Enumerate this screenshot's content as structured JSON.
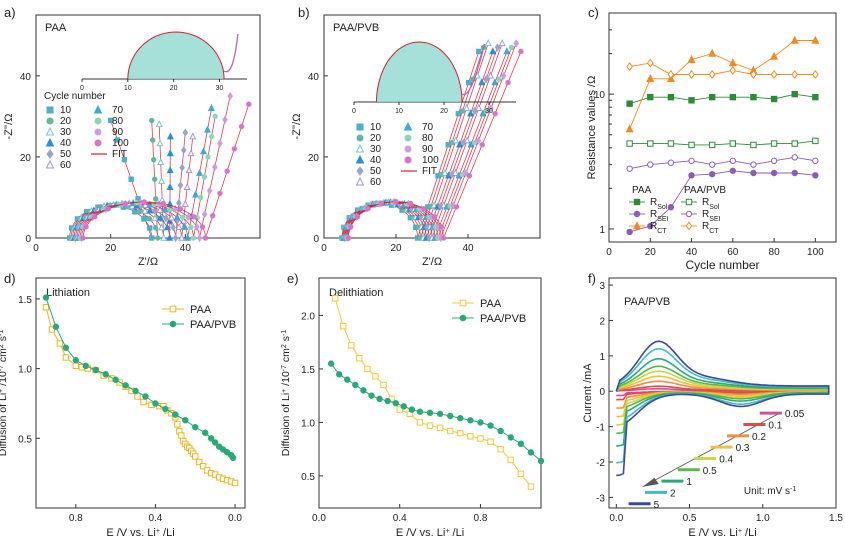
{
  "chart_data": [
    {
      "panel": "a)",
      "type": "scatter",
      "title": "PAA",
      "xlabel": "Z'/Ω",
      "ylabel": "-Z''/Ω",
      "xlim": [
        0,
        60
      ],
      "ylim": [
        0,
        55
      ],
      "xticks": [
        0,
        20,
        40
      ],
      "yticks": [
        0,
        20,
        40
      ],
      "legend_title": "Cycle number",
      "legend_col1": [
        "10",
        "20",
        "30",
        "40",
        "50",
        "60"
      ],
      "legend_col2": [
        "70",
        "80",
        "90",
        "100",
        "FIT"
      ],
      "inset_xticks": [
        0,
        10,
        20,
        30
      ],
      "series": [
        {
          "name": "10",
          "color": "#4bb0c8",
          "sr": 1.0,
          "tail": [
            [
              20,
              29
            ]
          ]
        },
        {
          "name": "20",
          "color": "#5fb8a0",
          "sr": 0.95,
          "tail": [
            [
              31,
              29
            ]
          ]
        },
        {
          "name": "30",
          "color": "#7ec0d8",
          "sr": 0.95,
          "tail": [
            [
              33,
              28
            ]
          ]
        },
        {
          "name": "40",
          "color": "#2f8fd0",
          "sr": 1.0,
          "tail": [
            [
              36,
              25
            ]
          ]
        },
        {
          "name": "50",
          "color": "#9aa6c8",
          "sr": 1.05,
          "tail": [
            [
              40,
              26
            ]
          ]
        },
        {
          "name": "60",
          "color": "#9b9bd6",
          "sr": 1.05,
          "tail": [
            [
              42,
              25
            ]
          ]
        },
        {
          "name": "70",
          "color": "#3fa8d8",
          "sr": 1.1,
          "tail": [
            [
              47,
              32
            ]
          ]
        },
        {
          "name": "80",
          "color": "#8fd6b8",
          "sr": 1.1,
          "tail": [
            [
              48,
              30
            ]
          ]
        },
        {
          "name": "90",
          "color": "#c9a0dc",
          "sr": 1.1,
          "tail": [
            [
              52,
              35
            ]
          ]
        },
        {
          "name": "100",
          "color": "#d873c8",
          "sr": 1.15,
          "tail": [
            [
              57,
              33
            ]
          ]
        }
      ]
    },
    {
      "panel": "b)",
      "type": "scatter",
      "title": "PAA/PVB",
      "xlabel": "Z'/Ω",
      "ylabel": "-Z''/Ω",
      "xlim": [
        0,
        60
      ],
      "ylim": [
        0,
        55
      ],
      "xticks": [
        0,
        20,
        40
      ],
      "yticks": [
        0,
        20,
        40
      ],
      "legend_title": "Cycle number",
      "legend_col1": [
        "10",
        "20",
        "30",
        "40",
        "50",
        "60"
      ],
      "legend_col2": [
        "70",
        "80",
        "90",
        "100",
        "FIT"
      ],
      "inset_xticks": [
        0,
        10,
        20,
        30
      ]
    },
    {
      "panel": "c)",
      "type": "line",
      "xlabel": "Cycle number",
      "ylabel": "Resistance values /Ω",
      "yscale": "log",
      "xlim": [
        0,
        110
      ],
      "ylim": [
        0.8,
        40
      ],
      "xticks": [
        0,
        20,
        40,
        60,
        80,
        100
      ],
      "yticks": [
        1,
        10
      ],
      "x": [
        10,
        20,
        30,
        40,
        50,
        60,
        70,
        80,
        90,
        100
      ],
      "legend_headers": [
        "PAA",
        "PAA/PVB"
      ],
      "legend_labels": [
        "RSol",
        "RSEI",
        "RCT"
      ],
      "series": [
        {
          "name": "RSol PAA",
          "color": "#2e8b3a",
          "marker": "square-filled",
          "values": [
            8.5,
            9.5,
            9.5,
            9.0,
            9.5,
            9.5,
            9.5,
            9.2,
            10,
            9.5
          ]
        },
        {
          "name": "RSEI PAA",
          "color": "#8a5db8",
          "marker": "circle-filled",
          "values": [
            0.95,
            1.05,
            1.45,
            2.5,
            2.55,
            2.7,
            2.6,
            2.6,
            2.6,
            2.5
          ]
        },
        {
          "name": "RCT PAA",
          "color": "#f08a24",
          "marker": "tri-filled",
          "values": [
            5.5,
            13,
            13,
            18,
            20,
            17,
            15,
            19,
            25,
            25
          ]
        },
        {
          "name": "RSol PAA/PVB",
          "color": "#2e8b3a",
          "marker": "square-open",
          "values": [
            4.3,
            4.3,
            4.3,
            4.2,
            4.2,
            4.3,
            4.2,
            4.3,
            4.3,
            4.5
          ]
        },
        {
          "name": "RSEI PAA/PVB",
          "color": "#8a5db8",
          "marker": "circle-open",
          "values": [
            2.8,
            3.0,
            3.1,
            3.2,
            3.0,
            3.2,
            3.0,
            3.2,
            3.4,
            3.2
          ]
        },
        {
          "name": "RCT PAA/PVB",
          "color": "#f08a24",
          "marker": "diamond-open",
          "values": [
            16,
            17,
            14,
            14,
            14,
            15,
            14,
            14,
            14,
            14
          ]
        }
      ]
    },
    {
      "panel": "d)",
      "type": "line",
      "title": "Lithiation",
      "xlabel": "E /V vs. Li+ /Li",
      "ylabel": "Diffusion of Li+ /10-7 cm2 s-1",
      "xlim": [
        1.0,
        -0.05
      ],
      "ylim": [
        0.0,
        1.65
      ],
      "xticks": [
        "0.8",
        "0.4",
        "0.0"
      ],
      "yticks": [
        "0.5",
        "1.0",
        "1.5"
      ],
      "series": [
        {
          "name": "PAA",
          "color": "#e8b824",
          "marker": "square-open",
          "x": [
            0.95,
            0.92,
            0.88,
            0.85,
            0.8,
            0.77,
            0.74,
            0.7,
            0.66,
            0.62,
            0.58,
            0.55,
            0.52,
            0.49,
            0.46,
            0.42,
            0.38,
            0.36,
            0.34,
            0.32,
            0.3,
            0.29,
            0.28,
            0.27,
            0.26,
            0.25,
            0.24,
            0.23,
            0.22,
            0.21,
            0.2,
            0.18,
            0.16,
            0.14,
            0.12,
            0.1,
            0.08,
            0.06,
            0.04,
            0.02,
            0.0
          ],
          "y": [
            1.44,
            1.28,
            1.18,
            1.08,
            1.02,
            1.01,
            1.0,
            0.99,
            0.95,
            0.93,
            0.9,
            0.87,
            0.84,
            0.8,
            0.76,
            0.74,
            0.73,
            0.73,
            0.7,
            0.68,
            0.65,
            0.6,
            0.55,
            0.52,
            0.48,
            0.46,
            0.44,
            0.43,
            0.41,
            0.39,
            0.37,
            0.33,
            0.3,
            0.27,
            0.25,
            0.24,
            0.22,
            0.21,
            0.2,
            0.19,
            0.18
          ]
        },
        {
          "name": "PAA/PVB",
          "color": "#2aa878",
          "marker": "circle-filled",
          "x": [
            0.95,
            0.9,
            0.85,
            0.8,
            0.75,
            0.7,
            0.65,
            0.6,
            0.55,
            0.5,
            0.45,
            0.4,
            0.35,
            0.3,
            0.25,
            0.2,
            0.15,
            0.12,
            0.1,
            0.08,
            0.06,
            0.04,
            0.02,
            0.01
          ],
          "y": [
            1.51,
            1.3,
            1.15,
            1.06,
            1.02,
            0.99,
            0.96,
            0.92,
            0.88,
            0.84,
            0.8,
            0.75,
            0.71,
            0.67,
            0.63,
            0.58,
            0.54,
            0.5,
            0.47,
            0.44,
            0.42,
            0.4,
            0.38,
            0.36
          ]
        }
      ]
    },
    {
      "panel": "e)",
      "type": "line",
      "title": "Delithiation",
      "xlabel": "E /V vs. Li+ /Li",
      "ylabel": "Diffusion of Li+ /10-7 cm2 s-1",
      "xlim": [
        0.0,
        1.1
      ],
      "ylim": [
        0.2,
        2.35
      ],
      "xticks": [
        "0.0",
        "0.4",
        "0.8"
      ],
      "yticks": [
        "0.5",
        "1.0",
        "1.5",
        "2.0"
      ],
      "series": [
        {
          "name": "PAA",
          "color": "#f0c840",
          "marker": "square-open",
          "x": [
            0.08,
            0.12,
            0.16,
            0.2,
            0.24,
            0.28,
            0.32,
            0.36,
            0.4,
            0.45,
            0.5,
            0.55,
            0.6,
            0.65,
            0.7,
            0.75,
            0.8,
            0.85,
            0.9,
            0.95,
            1.0,
            1.05
          ],
          "y": [
            2.16,
            1.9,
            1.72,
            1.6,
            1.5,
            1.43,
            1.35,
            1.22,
            1.12,
            1.08,
            1.0,
            0.97,
            0.95,
            0.92,
            0.9,
            0.87,
            0.85,
            0.82,
            0.75,
            0.65,
            0.52,
            0.4
          ]
        },
        {
          "name": "PAA/PVB",
          "color": "#2aa878",
          "marker": "circle-filled",
          "x": [
            0.06,
            0.1,
            0.14,
            0.18,
            0.22,
            0.26,
            0.3,
            0.34,
            0.38,
            0.42,
            0.46,
            0.5,
            0.55,
            0.6,
            0.65,
            0.7,
            0.75,
            0.8,
            0.85,
            0.9,
            0.95,
            1.0,
            1.05,
            1.1
          ],
          "y": [
            1.55,
            1.45,
            1.4,
            1.35,
            1.3,
            1.25,
            1.22,
            1.2,
            1.18,
            1.15,
            1.12,
            1.1,
            1.09,
            1.08,
            1.06,
            1.04,
            1.02,
            1.0,
            0.97,
            0.92,
            0.86,
            0.8,
            0.72,
            0.64
          ]
        }
      ]
    },
    {
      "panel": "f)",
      "type": "line",
      "title": "PAA/PVB",
      "xlabel": "E /V vs. Li+ /Li",
      "ylabel": "Current /mA",
      "xlim": [
        -0.05,
        1.5
      ],
      "ylim": [
        -3.3,
        3.2
      ],
      "xticks": [
        "0.0",
        "0.5",
        "1.0",
        "1.5"
      ],
      "yticks": [
        "-3",
        "-2",
        "-1",
        "0",
        "1",
        "2",
        "3"
      ],
      "unit_label": "Unit: mV s-1",
      "scan_rates": [
        {
          "label": "0.05",
          "color": "#d0509a",
          "amp": 0.05
        },
        {
          "label": "0.1",
          "color": "#e04a4a",
          "amp": 0.1
        },
        {
          "label": "0.2",
          "color": "#f09040",
          "amp": 0.2
        },
        {
          "label": "0.3",
          "color": "#f0c040",
          "amp": 0.3
        },
        {
          "label": "0.4",
          "color": "#c8d848",
          "amp": 0.4
        },
        {
          "label": "0.5",
          "color": "#58b848",
          "amp": 0.5
        },
        {
          "label": "1",
          "color": "#30a878",
          "amp": 0.65
        },
        {
          "label": "2",
          "color": "#48b8c8",
          "amp": 0.85
        },
        {
          "label": "5",
          "color": "#3a4a98",
          "amp": 1.0
        }
      ]
    }
  ]
}
